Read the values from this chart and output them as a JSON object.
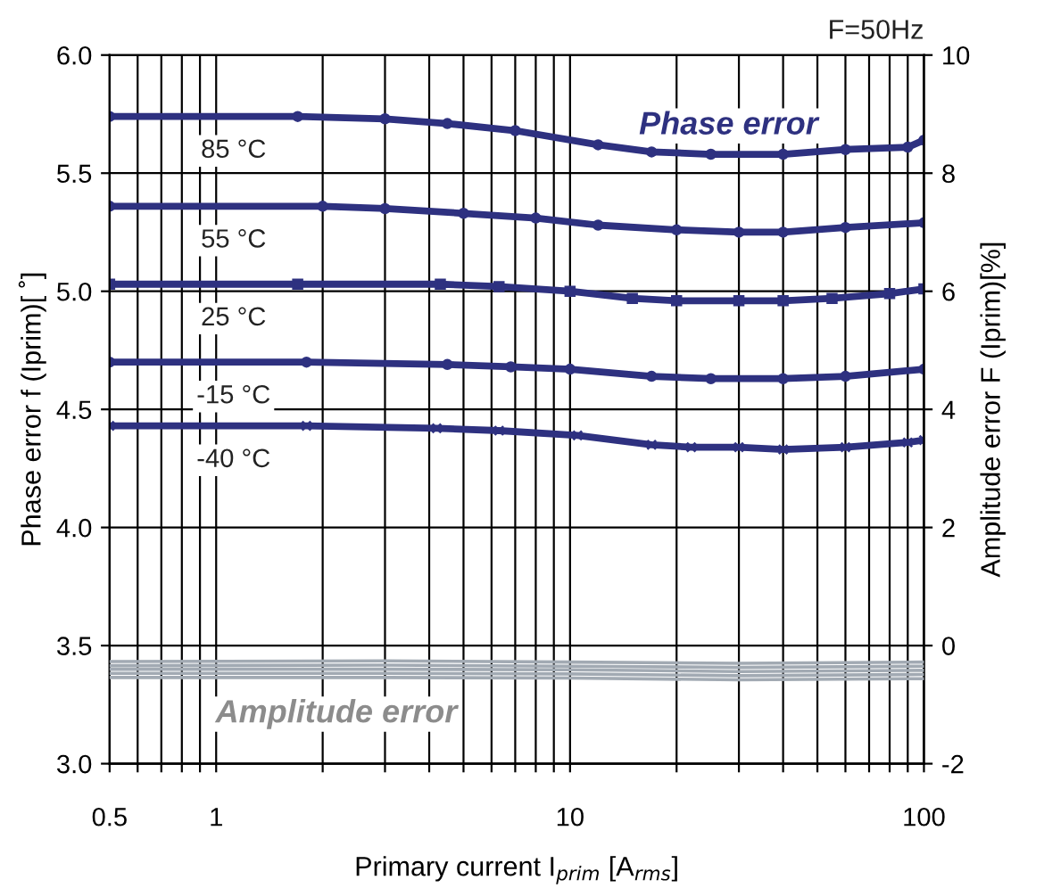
{
  "chart_data": {
    "type": "line",
    "xlabel": "Primary current I$_{prim}$ [A$_{rms}$]",
    "ylabel": "Phase error f (Iprim)[ ˚]",
    "y2label": "Amplitude error F (Iprim)[%]",
    "annotations": [
      "F=50Hz",
      "Phase error",
      "Amplitude error"
    ],
    "log": "x",
    "xlim": [
      0.5,
      100
    ],
    "xticks": [
      0.5,
      {
        "value": 0.6,
        "label": null
      },
      {
        "value": 0.7,
        "label": null
      },
      {
        "value": 0.8,
        "label": null
      },
      {
        "value": 0.9,
        "label": null
      },
      1,
      {
        "value": 2,
        "label": null
      },
      {
        "value": 3,
        "label": null
      },
      {
        "value": 4,
        "label": null
      },
      {
        "value": 5,
        "label": null
      },
      {
        "value": 6,
        "label": null
      },
      {
        "value": 7,
        "label": null
      },
      {
        "value": 8,
        "label": null
      },
      {
        "value": 9,
        "label": null
      },
      10,
      {
        "value": 20,
        "label": null
      },
      {
        "value": 30,
        "label": null
      },
      {
        "value": 40,
        "label": null
      },
      {
        "value": 50,
        "label": null
      },
      {
        "value": 60,
        "label": null
      },
      {
        "value": 70,
        "label": null
      },
      {
        "value": 80,
        "label": null
      },
      {
        "value": 90,
        "label": null
      },
      100
    ],
    "ylim": [
      3.0,
      6.0
    ],
    "yticks": [
      {
        "value": 3.0,
        "label": "3.0"
      },
      3.5,
      {
        "value": 4.0,
        "label": "4.0"
      },
      4.5,
      {
        "value": 5.0,
        "label": "5.0"
      },
      5.5,
      {
        "value": 6.0,
        "label": "6.0"
      }
    ],
    "y2lim": [
      -2,
      10
    ],
    "y2ticks": [
      -2,
      0,
      2,
      4,
      6,
      8,
      10
    ],
    "grid": true,
    "legend": false,
    "line_style": "solid",
    "series": [
      {
        "name": "85 °C",
        "color": "#2e3180",
        "marker": "circle",
        "x": [
          0.5,
          1.7,
          3,
          4.5,
          7,
          12,
          17,
          25,
          40,
          60,
          90,
          100
        ],
        "values": [
          5.74,
          5.74,
          5.73,
          5.71,
          5.68,
          5.62,
          5.59,
          5.58,
          5.58,
          5.6,
          5.61,
          5.64
        ]
      },
      {
        "name": "55 °C",
        "color": "#2e3180",
        "marker": "circle",
        "x": [
          0.5,
          2,
          3,
          5,
          8,
          12,
          20,
          30,
          40,
          60,
          100
        ],
        "values": [
          5.36,
          5.36,
          5.35,
          5.33,
          5.31,
          5.28,
          5.26,
          5.25,
          5.25,
          5.27,
          5.29
        ]
      },
      {
        "name": "25 °C",
        "color": "#2e3180",
        "marker": "square",
        "x": [
          0.5,
          1.7,
          4.3,
          6.3,
          10,
          15,
          20,
          30,
          40,
          55,
          80,
          100
        ],
        "values": [
          5.03,
          5.03,
          5.03,
          5.02,
          5.0,
          4.97,
          4.96,
          4.96,
          4.96,
          4.97,
          4.99,
          5.01
        ]
      },
      {
        "name": "-15 °C",
        "color": "#2e3180",
        "marker": "circle",
        "x": [
          0.5,
          1.8,
          4.5,
          6.8,
          10,
          17,
          25,
          40,
          60,
          100
        ],
        "values": [
          4.7,
          4.7,
          4.69,
          4.68,
          4.67,
          4.64,
          4.63,
          4.63,
          4.64,
          4.67
        ]
      },
      {
        "name": "-40 °C",
        "color": "#2e3180",
        "marker": "cross",
        "x": [
          0.5,
          1.8,
          4.2,
          6.3,
          10.5,
          17,
          22,
          30,
          40,
          60,
          90,
          100
        ],
        "values": [
          4.43,
          4.43,
          4.42,
          4.41,
          4.39,
          4.35,
          4.34,
          4.34,
          4.33,
          4.34,
          4.36,
          4.37
        ]
      },
      {
        "color": "#a2aab3",
        "axis": "y2",
        "marker": "none",
        "x": [
          0.5,
          3,
          10,
          30,
          100
        ],
        "values": [
          -0.27,
          -0.26,
          -0.28,
          -0.3,
          -0.28
        ]
      },
      {
        "color": "#a2aab3",
        "axis": "y2",
        "marker": "none",
        "x": [
          0.5,
          3,
          10,
          30,
          100
        ],
        "values": [
          -0.34,
          -0.33,
          -0.35,
          -0.37,
          -0.35
        ]
      },
      {
        "color": "#a2aab3",
        "axis": "y2",
        "marker": "none",
        "x": [
          0.5,
          3,
          10,
          30,
          100
        ],
        "values": [
          -0.4,
          -0.4,
          -0.41,
          -0.44,
          -0.42
        ]
      },
      {
        "color": "#a2aab3",
        "axis": "y2",
        "marker": "none",
        "x": [
          0.5,
          3,
          10,
          30,
          100
        ],
        "values": [
          -0.47,
          -0.47,
          -0.48,
          -0.51,
          -0.49
        ]
      },
      {
        "color": "#a2aab3",
        "axis": "y2",
        "marker": "none",
        "x": [
          0.5,
          3,
          10,
          30,
          100
        ],
        "values": [
          -0.54,
          -0.54,
          -0.55,
          -0.58,
          -0.56
        ]
      }
    ]
  }
}
